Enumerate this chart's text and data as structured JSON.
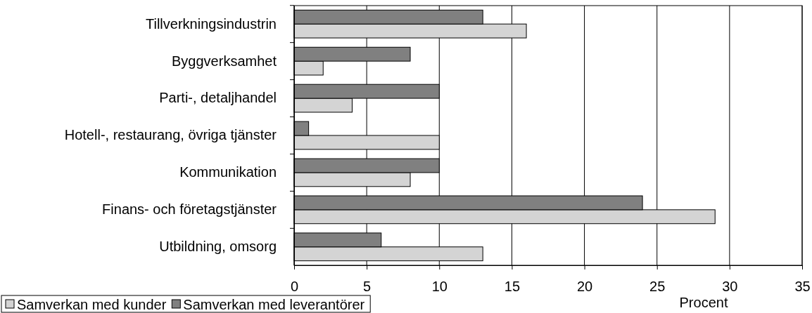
{
  "chart_data": {
    "type": "bar",
    "orientation": "horizontal",
    "xlabel": "Procent",
    "categories": [
      "Tillverkningsindustrin",
      "Byggverksamhet",
      "Parti-, detaljhandel",
      "Hotell-, restaurang, övriga tjänster",
      "Kommunikation",
      "Finans- och företagstjänster",
      "Utbildning, omsorg"
    ],
    "series": [
      {
        "name": "Samverkan med kunder",
        "color": "#d4d4d4",
        "values": [
          16,
          2,
          4,
          10,
          8,
          29,
          13
        ]
      },
      {
        "name": "Samverkan med leverantörer",
        "color": "#808080",
        "values": [
          13,
          8,
          10,
          1,
          10,
          24,
          6
        ]
      }
    ],
    "xlim": [
      0,
      35
    ],
    "xticks": [
      0,
      5,
      10,
      15,
      20,
      25,
      30,
      35
    ],
    "grid": "x",
    "legend": "bottom left"
  }
}
